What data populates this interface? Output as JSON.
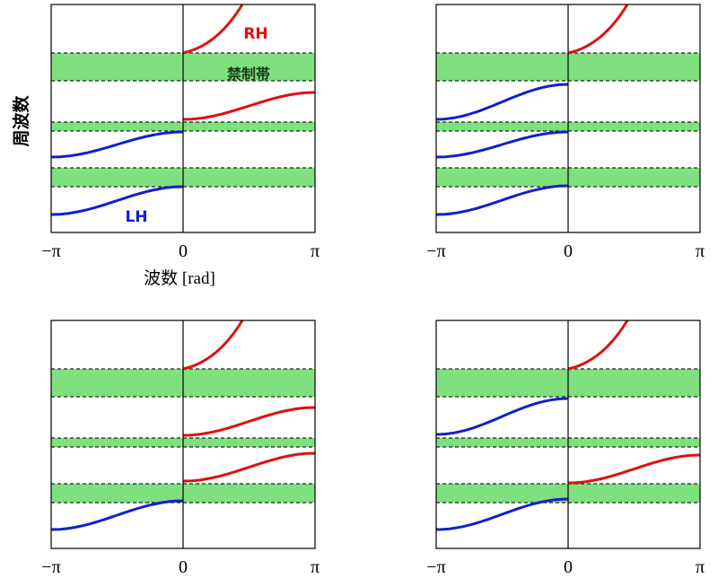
{
  "labels": {
    "rh": "RH",
    "stopband": "禁制帯",
    "lh": "LH",
    "y_axis": "周波数",
    "x_axis": "波数 [rad]"
  },
  "panels": [
    {
      "ticks": [
        "−π",
        "0",
        "π"
      ]
    },
    {
      "ticks": [
        "−π",
        "0",
        "π"
      ]
    },
    {
      "ticks": [
        "−π",
        "0",
        "π"
      ]
    },
    {
      "ticks": [
        "−π",
        "0",
        "π"
      ]
    }
  ]
}
